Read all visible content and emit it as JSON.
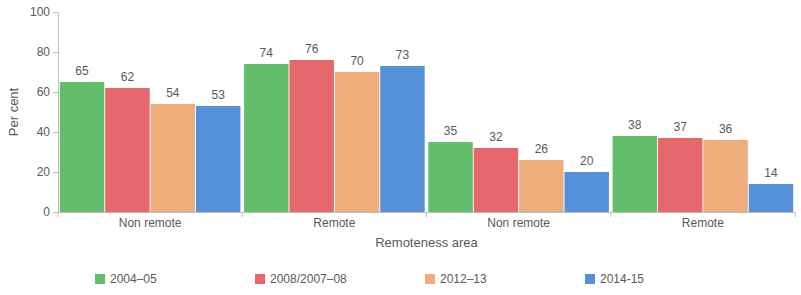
{
  "chart_data": {
    "type": "bar",
    "x_label": "Remoteness area",
    "y_label": "Per cent",
    "categories": [
      "Non remote",
      "Remote",
      "Non remote",
      "Remote"
    ],
    "series": [
      {
        "name": "2004–05",
        "color": "#63be6b",
        "values": [
          65,
          74,
          35,
          38
        ]
      },
      {
        "name": "2008/2007–08",
        "color": "#e6686d",
        "values": [
          62,
          76,
          32,
          37
        ]
      },
      {
        "name": "2012–13",
        "color": "#f0ad7c",
        "values": [
          54,
          70,
          26,
          36
        ]
      },
      {
        "name": "2014-15",
        "color": "#5591d9",
        "values": [
          53,
          73,
          20,
          14
        ]
      }
    ],
    "ylim": [
      0,
      100
    ],
    "yticks": [
      0,
      20,
      40,
      60,
      80,
      100
    ],
    "grid": false,
    "legend": "bottom",
    "data_labels": true
  }
}
